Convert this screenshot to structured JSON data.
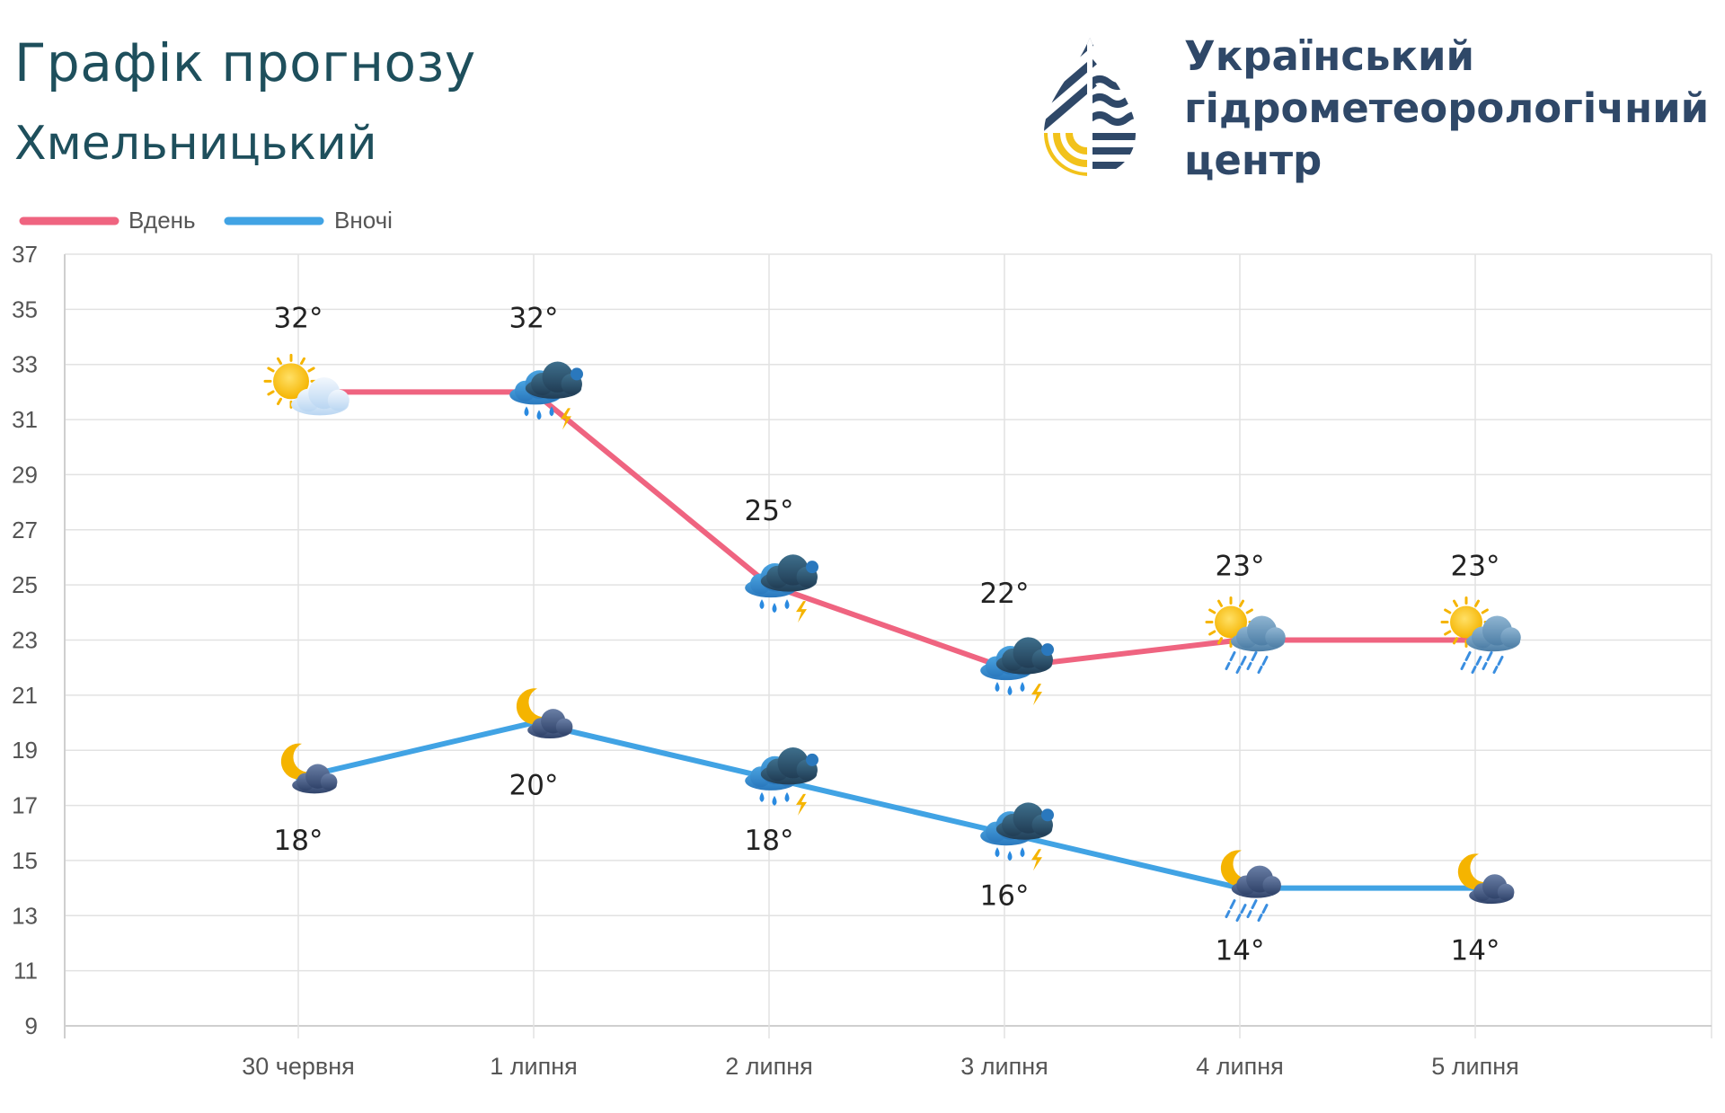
{
  "header": {
    "title": "Графік прогнозу",
    "city": "Хмельницький"
  },
  "logo": {
    "line1": "Український",
    "line2": "гідрометеорологічний",
    "line3": "центр"
  },
  "colors": {
    "day": "#ef6480",
    "night": "#41a3e4",
    "text_dark": "#1e4f5c",
    "logo_navy": "#2f4868",
    "logo_yellow": "#f2c21b"
  },
  "chart_data": {
    "type": "line",
    "title": "Графік прогнозу",
    "categories": [
      "30 червня",
      "1 липня",
      "2 липня",
      "3 липня",
      "4 липня",
      "5 липня"
    ],
    "ylim": [
      9,
      37
    ],
    "yticks": [
      9,
      11,
      13,
      15,
      17,
      19,
      21,
      23,
      25,
      27,
      29,
      31,
      33,
      35,
      37
    ],
    "xlabel": "",
    "ylabel": "",
    "grid": true,
    "legend_position": "top-left",
    "series": [
      {
        "name": "Вдень",
        "key": "day",
        "values": [
          32,
          32,
          25,
          22,
          23,
          23
        ],
        "labels": [
          "32°",
          "32°",
          "25°",
          "22°",
          "23°",
          "23°"
        ],
        "icons": [
          "sun-cloud-icon",
          "thunderstorm-icon",
          "thunderstorm-icon",
          "thunderstorm-icon",
          "sun-cloud-rain-icon",
          "sun-cloud-rain-icon"
        ]
      },
      {
        "name": "Вночі",
        "key": "night",
        "values": [
          18,
          20,
          18,
          16,
          14,
          14
        ],
        "labels": [
          "18°",
          "20°",
          "18°",
          "16°",
          "14°",
          "14°"
        ],
        "icons": [
          "moon-cloud-icon",
          "moon-cloud-icon",
          "thunderstorm-icon",
          "thunderstorm-icon",
          "moon-cloud-rain-icon",
          "moon-cloud-icon"
        ]
      }
    ]
  }
}
